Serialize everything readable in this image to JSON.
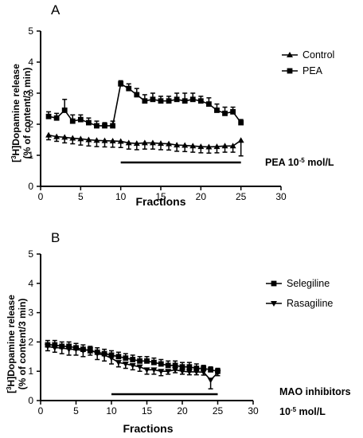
{
  "chart_data": [
    {
      "type": "line",
      "panel_label": "A",
      "xlabel": "Fractions",
      "ylabel_parts": [
        "[",
        "3",
        "H]Dopamine release"
      ],
      "ylabel_line2": "(% of content/3 min)",
      "xlim": [
        0,
        30
      ],
      "ylim": [
        0,
        5
      ],
      "xticks": [
        "0",
        "5",
        "10",
        "15",
        "20",
        "25",
        "30"
      ],
      "yticks": [
        "0",
        "1",
        "2",
        "3",
        "4",
        "5"
      ],
      "x": [
        1,
        2,
        3,
        4,
        5,
        6,
        7,
        8,
        9,
        10,
        11,
        12,
        13,
        14,
        15,
        16,
        17,
        18,
        19,
        20,
        21,
        22,
        23,
        24,
        25
      ],
      "series": [
        {
          "name": "Control",
          "marker": "triangle-up",
          "values": [
            1.65,
            1.6,
            1.58,
            1.55,
            1.53,
            1.5,
            1.48,
            1.47,
            1.46,
            1.45,
            1.4,
            1.38,
            1.4,
            1.4,
            1.38,
            1.37,
            1.33,
            1.32,
            1.3,
            1.28,
            1.27,
            1.28,
            1.3,
            1.3,
            1.48
          ],
          "errors": [
            0.15,
            0.15,
            0.18,
            0.18,
            0.2,
            0.2,
            0.2,
            0.2,
            0.2,
            0.2,
            0.2,
            0.2,
            0.2,
            0.2,
            0.2,
            0.2,
            0.2,
            0.2,
            0.2,
            0.2,
            0.2,
            0.2,
            0.2,
            0.2,
            0.5
          ]
        },
        {
          "name": "PEA",
          "marker": "square",
          "values": [
            2.25,
            2.2,
            2.45,
            2.1,
            2.15,
            2.05,
            1.95,
            1.95,
            1.95,
            3.3,
            3.15,
            2.95,
            2.75,
            2.8,
            2.75,
            2.75,
            2.8,
            2.75,
            2.8,
            2.75,
            2.65,
            2.45,
            2.35,
            2.4,
            2.05
          ],
          "errors": [
            0.15,
            0.15,
            0.35,
            0.2,
            0.15,
            0.15,
            0.15,
            0.1,
            0.15,
            0.1,
            0.15,
            0.2,
            0.2,
            0.2,
            0.15,
            0.15,
            0.2,
            0.25,
            0.2,
            0.15,
            0.2,
            0.2,
            0.2,
            0.15,
            0.1
          ]
        }
      ],
      "bar_annotation": {
        "x_start": 10,
        "x_end": 25,
        "label_prefix": "PEA 10",
        "label_exp": "-5",
        "label_suffix": " mol/L"
      },
      "legend_position": "top-right"
    },
    {
      "type": "line",
      "panel_label": "B",
      "xlabel": "Fractions",
      "ylabel_parts": [
        "[",
        "3",
        "H]Dopamine release"
      ],
      "ylabel_line2": "(% of content/3 min)",
      "xlim": [
        0,
        30
      ],
      "ylim": [
        0,
        5
      ],
      "xticks": [
        "0",
        "5",
        "10",
        "15",
        "20",
        "25",
        "30"
      ],
      "yticks": [
        "0",
        "1",
        "2",
        "3",
        "4",
        "5"
      ],
      "x": [
        1,
        2,
        3,
        4,
        5,
        6,
        7,
        8,
        9,
        10,
        11,
        12,
        13,
        14,
        15,
        16,
        17,
        18,
        19,
        20,
        21,
        22,
        23,
        24,
        25
      ],
      "series": [
        {
          "name": "Selegiline",
          "marker": "square",
          "values": [
            1.9,
            1.9,
            1.85,
            1.85,
            1.8,
            1.75,
            1.7,
            1.65,
            1.6,
            1.55,
            1.5,
            1.45,
            1.4,
            1.35,
            1.35,
            1.3,
            1.25,
            1.2,
            1.2,
            1.15,
            1.15,
            1.1,
            1.1,
            1.05,
            1.0
          ],
          "errors": [
            0.15,
            0.15,
            0.15,
            0.15,
            0.15,
            0.15,
            0.15,
            0.15,
            0.15,
            0.15,
            0.15,
            0.15,
            0.15,
            0.15,
            0.15,
            0.15,
            0.15,
            0.15,
            0.15,
            0.15,
            0.15,
            0.15,
            0.1,
            0.1,
            0.1
          ]
        },
        {
          "name": "Rasagiline",
          "marker": "triangle-down",
          "values": [
            1.85,
            1.8,
            1.8,
            1.75,
            1.75,
            1.7,
            1.75,
            1.6,
            1.55,
            1.45,
            1.3,
            1.25,
            1.2,
            1.15,
            1.05,
            1.05,
            1.0,
            1.0,
            1.05,
            1.0,
            0.98,
            0.98,
            0.97,
            0.7,
            0.95
          ],
          "errors": [
            0.15,
            0.15,
            0.2,
            0.2,
            0.2,
            0.2,
            0.2,
            0.2,
            0.2,
            0.2,
            0.15,
            0.15,
            0.15,
            0.15,
            0.15,
            0.15,
            0.15,
            0.1,
            0.1,
            0.1,
            0.1,
            0.1,
            0.1,
            0.3,
            0.1
          ]
        }
      ],
      "bar_annotation": {
        "x_start": 10,
        "x_end": 25,
        "label_line1": "MAO inhibitors",
        "label_prefix": "10",
        "label_exp": "-5",
        "label_suffix": " mol/L"
      },
      "legend_position": "right"
    }
  ]
}
